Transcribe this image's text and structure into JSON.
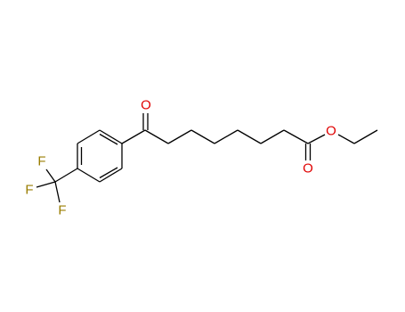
{
  "atoms": [
    {
      "label": "O"
    },
    {
      "label": "O"
    },
    {
      "label": "O"
    },
    {
      "label": "F"
    },
    {
      "label": "F"
    },
    {
      "label": "F"
    }
  ]
}
